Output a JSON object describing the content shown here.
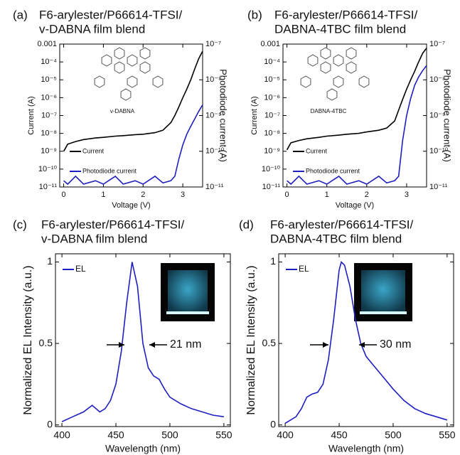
{
  "chart_data": [
    {
      "type": "line",
      "label": "(a)",
      "title": [
        "F6-arylester/P66614-TFSI/",
        "v-DABNA film blend"
      ],
      "xlabel": "Voltage (V)",
      "ylabel": "Current (A)",
      "y2label": "Photodiode current (A)",
      "inset_label": "v-DABNA",
      "x": [
        0,
        0.1,
        0.3,
        0.5,
        0.8,
        1.0,
        1.3,
        1.5,
        1.8,
        2.0,
        2.3,
        2.5,
        2.7,
        2.8,
        2.9,
        3.0,
        3.1,
        3.2,
        3.3,
        3.4,
        3.5
      ],
      "series": [
        {
          "name": "Current",
          "color": "#000000",
          "values": [
            1e-09,
            2.5e-09,
            3.5e-09,
            4.5e-09,
            5.5e-09,
            6e-09,
            7e-09,
            7.5e-09,
            8.5e-09,
            9e-09,
            1.1e-08,
            1.5e-08,
            4e-08,
            1e-07,
            3e-07,
            1e-06,
            3e-06,
            1e-05,
            4e-05,
            0.00015,
            0.0004
          ]
        },
        {
          "name": "Photodiode current",
          "color": "#1f1fbf",
          "axis": "y2",
          "values": [
            1.5e-11,
            1.2e-11,
            2e-11,
            1.2e-11,
            1.5e-11,
            1.2e-11,
            2e-11,
            1.2e-11,
            1.5e-11,
            1.2e-11,
            2e-11,
            1.3e-11,
            1.5e-11,
            2e-11,
            6e-11,
            1.5e-10,
            3e-10,
            5e-10,
            8e-10,
            1.3e-09,
            2e-09
          ]
        }
      ],
      "xlim": [
        -0.1,
        3.5
      ],
      "xticks": [
        0,
        1,
        2,
        3
      ],
      "ylog": true,
      "ylim": [
        1e-11,
        0.001
      ],
      "yticks": [
        {
          "value": 1e-11,
          "label": "10⁻¹¹"
        },
        {
          "value": 1e-10,
          "label": "10⁻¹⁰"
        },
        {
          "value": 1e-09,
          "label": "10⁻⁹"
        },
        {
          "value": 1e-08,
          "label": "10⁻⁸"
        },
        {
          "value": 1e-07,
          "label": "10⁻⁷"
        },
        {
          "value": 1e-06,
          "label": "10⁻⁶"
        },
        {
          "value": 1e-05,
          "label": "10⁻⁵"
        },
        {
          "value": 0.0001,
          "label": "10⁻⁴"
        },
        0.001
      ],
      "y2log": true,
      "y2lim": [
        1e-11,
        1e-07
      ],
      "y2ticks": [
        {
          "value": 1e-11,
          "label": "10⁻¹¹"
        },
        {
          "value": 1e-10,
          "label": "10⁻¹⁰"
        },
        {
          "value": 1e-09,
          "label": "10⁻⁹"
        },
        {
          "value": 1e-08,
          "label": "10⁻⁸"
        },
        {
          "value": 1e-07,
          "label": "10⁻⁷"
        }
      ],
      "legend": "lower left"
    },
    {
      "type": "line",
      "label": "(b)",
      "title": [
        "F6-arylester/P66614-TFSI/",
        "DABNA-4TBC film blend"
      ],
      "xlabel": "Voltage (V)",
      "ylabel": "Current (A)",
      "y2label": "Photodiode current (A)",
      "inset_label": "DABNA-4TBC",
      "x": [
        0,
        0.1,
        0.3,
        0.5,
        0.8,
        1.0,
        1.3,
        1.5,
        1.8,
        2.0,
        2.3,
        2.5,
        2.7,
        2.8,
        2.9,
        3.0,
        3.1,
        3.2,
        3.3,
        3.4,
        3.5
      ],
      "series": [
        {
          "name": "Current",
          "color": "#000000",
          "values": [
            1.2e-09,
            3e-09,
            4e-09,
            5e-09,
            6e-09,
            7e-09,
            8e-09,
            9e-09,
            1e-08,
            1.2e-08,
            1.5e-08,
            2e-08,
            5e-08,
            2e-07,
            8e-07,
            3e-06,
            1e-05,
            3e-05,
            0.0001,
            0.0003,
            0.0006
          ]
        },
        {
          "name": "Photodiode current",
          "color": "#1f1fbf",
          "axis": "y2",
          "values": [
            1.5e-11,
            1.2e-11,
            2e-11,
            1.2e-11,
            1.5e-11,
            1.2e-11,
            2e-11,
            1.2e-11,
            1.5e-11,
            1.2e-11,
            2e-11,
            1.3e-11,
            1.5e-11,
            2e-11,
            2e-10,
            1e-09,
            3e-09,
            7e-09,
            1.2e-08,
            1.8e-08,
            2.5e-08
          ]
        }
      ],
      "xlim": [
        -0.1,
        3.5
      ],
      "xticks": [
        0,
        1,
        2,
        3
      ],
      "ylog": true,
      "ylim": [
        1e-11,
        0.001
      ],
      "yticks": [
        {
          "value": 1e-11,
          "label": "10⁻¹¹"
        },
        {
          "value": 1e-10,
          "label": "10⁻¹⁰"
        },
        {
          "value": 1e-09,
          "label": "10⁻⁹"
        },
        {
          "value": 1e-08,
          "label": "10⁻⁸"
        },
        {
          "value": 1e-07,
          "label": "10⁻⁷"
        },
        {
          "value": 1e-06,
          "label": "10⁻⁶"
        },
        {
          "value": 1e-05,
          "label": "10⁻⁵"
        },
        {
          "value": 0.0001,
          "label": "10⁻⁴"
        },
        0.001
      ],
      "y2log": true,
      "y2lim": [
        1e-11,
        1e-07
      ],
      "y2ticks": [
        {
          "value": 1e-11,
          "label": "10⁻¹¹"
        },
        {
          "value": 1e-10,
          "label": "10⁻¹⁰"
        },
        {
          "value": 1e-09,
          "label": "10⁻⁹"
        },
        {
          "value": 1e-08,
          "label": "10⁻⁸"
        },
        {
          "value": 1e-07,
          "label": "10⁻⁷"
        }
      ],
      "legend": "lower left"
    },
    {
      "type": "line",
      "label": "(c)",
      "title": [
        "F6-arylester/P66614-TFSI/",
        "v-DABNA film blend"
      ],
      "xlabel": "Wavelength (nm)",
      "ylabel": "Normalized EL Intensity (a.u.)",
      "annotation": "21 nm",
      "x": [
        400,
        410,
        420,
        428,
        435,
        440,
        445,
        450,
        455,
        460,
        465,
        470,
        475,
        480,
        485,
        490,
        495,
        500,
        510,
        520,
        530,
        540,
        550
      ],
      "series": [
        {
          "name": "EL",
          "color": "#1f1fbf",
          "values": [
            0.02,
            0.05,
            0.08,
            0.12,
            0.08,
            0.1,
            0.15,
            0.25,
            0.45,
            0.75,
            1.0,
            0.85,
            0.5,
            0.35,
            0.3,
            0.28,
            0.22,
            0.17,
            0.13,
            0.1,
            0.08,
            0.06,
            0.05
          ]
        }
      ],
      "xlim": [
        394,
        556
      ],
      "xticks": [
        400,
        450,
        500,
        550
      ],
      "ylim": [
        -0.01,
        1.05
      ],
      "yticks": [
        0,
        0.5,
        1
      ],
      "legend": "upper left"
    },
    {
      "type": "line",
      "label": "(d)",
      "title": [
        "F6-arylester/P66614-TFSI/",
        "DABNA-4TBC film blend"
      ],
      "xlabel": "Wavelength (nm)",
      "ylabel": "Normalized EL Intensity (a.u.)",
      "annotation": "30 nm",
      "x": [
        400,
        410,
        415,
        420,
        425,
        430,
        435,
        440,
        445,
        450,
        452,
        455,
        460,
        465,
        470,
        475,
        480,
        490,
        500,
        510,
        520,
        530,
        540,
        550
      ],
      "series": [
        {
          "name": "EL",
          "color": "#1f1fbf",
          "values": [
            0.01,
            0.05,
            0.1,
            0.17,
            0.19,
            0.2,
            0.25,
            0.4,
            0.65,
            0.95,
            1.0,
            0.98,
            0.85,
            0.65,
            0.5,
            0.42,
            0.38,
            0.3,
            0.22,
            0.15,
            0.1,
            0.07,
            0.05,
            0.03
          ]
        }
      ],
      "xlim": [
        394,
        556
      ],
      "xticks": [
        400,
        450,
        500,
        550
      ],
      "ylim": [
        -0.01,
        1.05
      ],
      "yticks": [
        0,
        0.5,
        1
      ],
      "legend": "upper left"
    }
  ]
}
